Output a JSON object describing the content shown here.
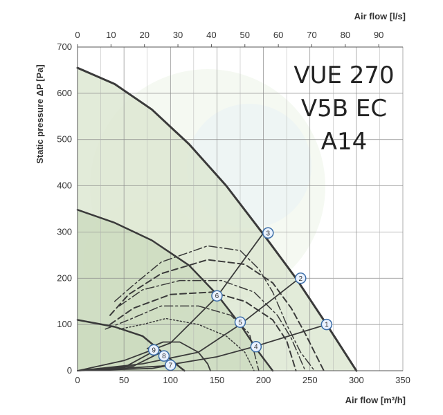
{
  "chart_data": {
    "type": "line",
    "model_label": [
      "VUE 270",
      "V5B EC",
      "A14"
    ],
    "xlabel": "Air flow [m³/h]",
    "x2label": "Air flow [l/s]",
    "ylabel": "Static pressure ΔP [Pa]",
    "xlim": [
      0,
      350
    ],
    "ylim": [
      0,
      700
    ],
    "x2lim": [
      0,
      97.2
    ],
    "x_ticks": [
      0,
      50,
      100,
      150,
      200,
      250,
      300,
      350
    ],
    "y_ticks": [
      0,
      100,
      200,
      300,
      400,
      500,
      600,
      700
    ],
    "x2_ticks": [
      0,
      10,
      20,
      30,
      40,
      50,
      60,
      70,
      80,
      90
    ],
    "grid": true,
    "colors": {
      "fill_outer": "#dde8d2",
      "fill_inner": "#cddcbf",
      "curve": "#3a3a3a",
      "point_fill": "#eaf2ff",
      "point_stroke": "#3c6ea8"
    },
    "series": [
      {
        "style": "solid",
        "fill": "outer",
        "width": 3,
        "points": [
          [
            0,
            655
          ],
          [
            40,
            620
          ],
          [
            80,
            565
          ],
          [
            120,
            490
          ],
          [
            160,
            400
          ],
          [
            200,
            295
          ],
          [
            235,
            200
          ],
          [
            268,
            100
          ],
          [
            300,
            0
          ]
        ]
      },
      {
        "style": "solid",
        "fill": "inner",
        "width": 2.5,
        "points": [
          [
            0,
            348
          ],
          [
            40,
            320
          ],
          [
            80,
            282
          ],
          [
            120,
            228
          ],
          [
            150,
            165
          ],
          [
            175,
            100
          ],
          [
            195,
            40
          ],
          [
            210,
            0
          ]
        ]
      },
      {
        "style": "solid",
        "fill": "inner",
        "width": 2.5,
        "points": [
          [
            0,
            110
          ],
          [
            40,
            95
          ],
          [
            70,
            75
          ],
          [
            88,
            45
          ],
          [
            100,
            25
          ],
          [
            110,
            8
          ],
          [
            115,
            0
          ]
        ]
      },
      {
        "style": "dashdot",
        "width": 1.5,
        "points": [
          [
            40,
            150
          ],
          [
            60,
            185
          ],
          [
            90,
            235
          ],
          [
            140,
            270
          ],
          [
            175,
            260
          ],
          [
            195,
            220
          ],
          [
            210,
            170
          ],
          [
            225,
            100
          ],
          [
            240,
            40
          ],
          [
            255,
            0
          ]
        ]
      },
      {
        "style": "dashed",
        "width": 2,
        "points": [
          [
            35,
            120
          ],
          [
            55,
            165
          ],
          [
            90,
            210
          ],
          [
            140,
            240
          ],
          [
            180,
            230
          ],
          [
            210,
            190
          ],
          [
            230,
            135
          ],
          [
            245,
            80
          ],
          [
            260,
            20
          ],
          [
            265,
            0
          ]
        ]
      },
      {
        "style": "dashdot",
        "width": 1.5,
        "points": [
          [
            45,
            140
          ],
          [
            70,
            175
          ],
          [
            110,
            195
          ],
          [
            155,
            195
          ],
          [
            190,
            170
          ],
          [
            215,
            120
          ],
          [
            230,
            70
          ],
          [
            245,
            0
          ]
        ]
      },
      {
        "style": "dashed",
        "width": 2,
        "points": [
          [
            35,
            100
          ],
          [
            60,
            135
          ],
          [
            100,
            165
          ],
          [
            145,
            170
          ],
          [
            180,
            150
          ],
          [
            210,
            110
          ],
          [
            225,
            65
          ],
          [
            235,
            0
          ]
        ]
      },
      {
        "style": "dashdot",
        "width": 1.5,
        "points": [
          [
            30,
            90
          ],
          [
            55,
            110
          ],
          [
            90,
            140
          ],
          [
            130,
            140
          ],
          [
            165,
            120
          ],
          [
            185,
            80
          ],
          [
            195,
            0
          ]
        ]
      },
      {
        "style": "dotted",
        "width": 1.5,
        "points": [
          [
            45,
            90
          ],
          [
            70,
            100
          ],
          [
            95,
            113
          ],
          [
            130,
            100
          ],
          [
            160,
            75
          ],
          [
            180,
            40
          ],
          [
            190,
            0
          ]
        ]
      },
      {
        "style": "solid",
        "width": 1.8,
        "points": [
          [
            75,
            48
          ],
          [
            92,
            62
          ],
          [
            110,
            62
          ],
          [
            130,
            40
          ],
          [
            140,
            15
          ],
          [
            143,
            0
          ]
        ]
      },
      {
        "style": "solid",
        "width": 1.8,
        "points": [
          [
            0,
            0
          ],
          [
            50,
            22
          ],
          [
            100,
            60
          ],
          [
            150,
            160
          ],
          [
            200,
            298
          ]
        ]
      },
      {
        "style": "solid",
        "width": 1.8,
        "points": [
          [
            0,
            0
          ],
          [
            70,
            15
          ],
          [
            130,
            40
          ],
          [
            175,
            100
          ],
          [
            240,
            202
          ]
        ]
      },
      {
        "style": "solid",
        "width": 1.8,
        "points": [
          [
            0,
            0
          ],
          [
            90,
            10
          ],
          [
            150,
            30
          ],
          [
            190,
            52
          ],
          [
            268,
            100
          ]
        ]
      },
      {
        "style": "solid",
        "width": 1.8,
        "points": [
          [
            0,
            0
          ],
          [
            60,
            10
          ],
          [
            88,
            38
          ]
        ]
      },
      {
        "style": "solid",
        "width": 1.8,
        "points": [
          [
            0,
            0
          ],
          [
            80,
            5
          ],
          [
            100,
            12
          ]
        ]
      },
      {
        "style": "solid",
        "width": 1.8,
        "points": [
          [
            0,
            0
          ],
          [
            50,
            7
          ],
          [
            80,
            40
          ]
        ]
      }
    ],
    "operating_points": [
      {
        "label": "1",
        "x": 268,
        "y": 100
      },
      {
        "label": "2",
        "x": 240,
        "y": 200
      },
      {
        "label": "3",
        "x": 205,
        "y": 298
      },
      {
        "label": "4",
        "x": 192,
        "y": 52
      },
      {
        "label": "5",
        "x": 175,
        "y": 105
      },
      {
        "label": "6",
        "x": 150,
        "y": 162
      },
      {
        "label": "7",
        "x": 100,
        "y": 12
      },
      {
        "label": "8",
        "x": 93,
        "y": 32
      },
      {
        "label": "9",
        "x": 82,
        "y": 45
      }
    ]
  }
}
